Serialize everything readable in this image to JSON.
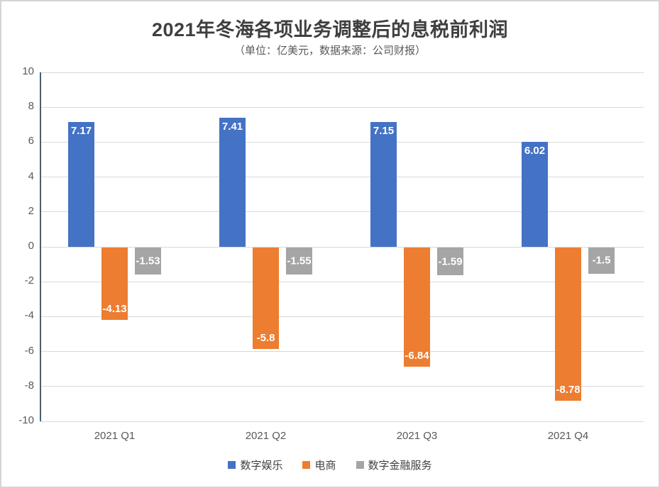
{
  "chart_data": {
    "type": "bar",
    "title": "2021年冬海各项业务调整后的息税前利润",
    "subtitle": "（单位：亿美元，数据来源：公司财报）",
    "categories": [
      "2021 Q1",
      "2021 Q2",
      "2021 Q3",
      "2021 Q4"
    ],
    "series": [
      {
        "name": "数字娱乐",
        "color": "#4472C4",
        "values": [
          7.17,
          7.41,
          7.15,
          6.02
        ],
        "labels": [
          "7.17",
          "7.41",
          "7.15",
          "6.02"
        ]
      },
      {
        "name": "电商",
        "color": "#ED7D31",
        "values": [
          -4.13,
          -5.8,
          -6.84,
          -8.78
        ],
        "labels": [
          "-4.13",
          "-5.8",
          "-6.84",
          "-8.78"
        ]
      },
      {
        "name": "数字金融服务",
        "color": "#A5A5A5",
        "values": [
          -1.53,
          -1.55,
          -1.59,
          -1.5
        ],
        "labels": [
          "-1.53",
          "-1.55",
          "-1.59",
          "-1.5"
        ]
      }
    ],
    "ylim": [
      -10,
      10
    ],
    "yticks": [
      10,
      8,
      6,
      4,
      2,
      0,
      -2,
      -4,
      -6,
      -8,
      -10
    ],
    "grid": true,
    "legend_position": "bottom",
    "colors": {
      "grid": "#D9D9D9",
      "axis": "#4A5F6E",
      "title_text": "#3F3F3F",
      "subtitle_text": "#595959",
      "tick_text": "#595959",
      "legend_text": "#404040",
      "bar_label_text": "#FFFFFF"
    }
  }
}
